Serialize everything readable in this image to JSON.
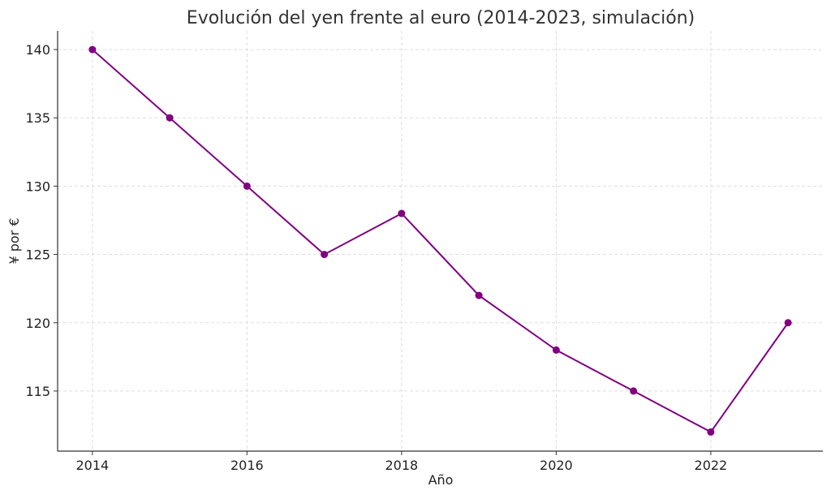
{
  "chart_data": {
    "type": "line",
    "title": "Evolución del yen frente al euro (2014-2023, simulación)",
    "xlabel": "Año",
    "ylabel": "¥ por €",
    "x": [
      2014,
      2015,
      2016,
      2017,
      2018,
      2019,
      2020,
      2021,
      2022,
      2023
    ],
    "series": [
      {
        "name": "¥ por €",
        "values": [
          140,
          135,
          130,
          125,
          128,
          122,
          118,
          115,
          112,
          120
        ],
        "color": "#800080"
      }
    ],
    "xticks": [
      2014,
      2016,
      2018,
      2020,
      2022
    ],
    "yticks": [
      115,
      120,
      125,
      130,
      135,
      140
    ],
    "xlim": [
      2013.55,
      2023.45
    ],
    "ylim": [
      110.6,
      141.37
    ],
    "grid": true
  }
}
